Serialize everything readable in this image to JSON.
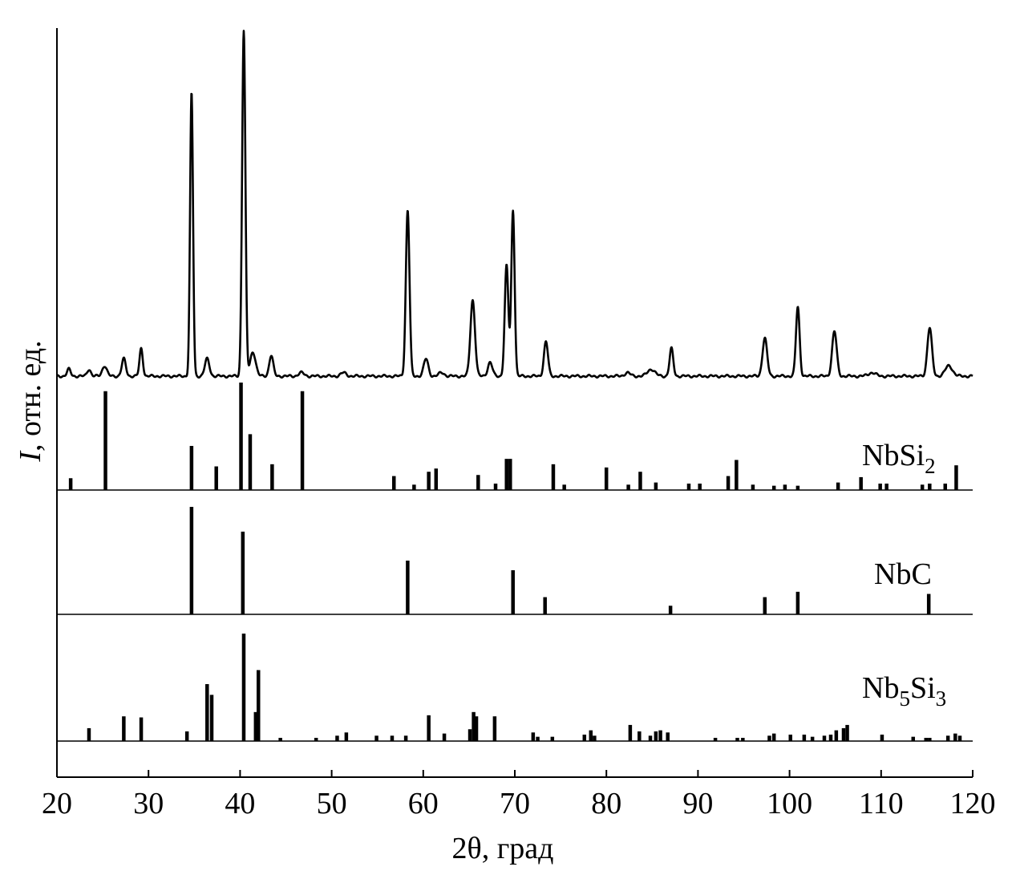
{
  "chart_data": {
    "type": "line",
    "xlabel": "2θ, град",
    "ylabel_italic": "I",
    "ylabel_rest": ", отн. ед.",
    "xlim": [
      20,
      120
    ],
    "xticks": [
      20,
      30,
      40,
      50,
      60,
      70,
      80,
      90,
      100,
      110,
      120
    ],
    "pattern": {
      "baseline": 0.03,
      "peaks": [
        [
          21.3,
          0.02,
          0.2
        ],
        [
          23.5,
          0.02,
          0.2
        ],
        [
          25.2,
          0.03,
          0.25
        ],
        [
          27.3,
          0.05,
          0.22
        ],
        [
          29.2,
          0.08,
          0.18
        ],
        [
          34.7,
          0.82,
          0.16
        ],
        [
          36.4,
          0.05,
          0.25
        ],
        [
          40.4,
          1.0,
          0.18
        ],
        [
          41.4,
          0.07,
          0.3
        ],
        [
          43.4,
          0.06,
          0.22
        ],
        [
          46.7,
          0.01,
          0.3
        ],
        [
          51.3,
          0.01,
          0.3
        ],
        [
          58.3,
          0.48,
          0.2
        ],
        [
          60.3,
          0.05,
          0.25
        ],
        [
          62.0,
          0.01,
          0.3
        ],
        [
          65.4,
          0.22,
          0.25
        ],
        [
          67.3,
          0.04,
          0.25
        ],
        [
          69.1,
          0.32,
          0.2
        ],
        [
          69.8,
          0.48,
          0.18
        ],
        [
          73.4,
          0.1,
          0.22
        ],
        [
          82.3,
          0.01,
          0.3
        ],
        [
          84.9,
          0.02,
          0.4
        ],
        [
          87.1,
          0.08,
          0.2
        ],
        [
          97.3,
          0.11,
          0.25
        ],
        [
          100.9,
          0.2,
          0.2
        ],
        [
          104.9,
          0.13,
          0.25
        ],
        [
          109.0,
          0.01,
          0.4
        ],
        [
          115.3,
          0.14,
          0.25
        ],
        [
          117.4,
          0.03,
          0.4
        ]
      ]
    },
    "reference_patterns": [
      {
        "name": "NbSi",
        "subscript": "2",
        "lines": [
          [
            21.5,
            0.11
          ],
          [
            25.3,
            0.92
          ],
          [
            34.7,
            0.41
          ],
          [
            37.4,
            0.22
          ],
          [
            40.1,
            1.0
          ],
          [
            41.1,
            0.52
          ],
          [
            43.5,
            0.24
          ],
          [
            46.8,
            0.92
          ],
          [
            56.8,
            0.13
          ],
          [
            59.0,
            0.05
          ],
          [
            60.6,
            0.17
          ],
          [
            61.4,
            0.2
          ],
          [
            66.0,
            0.14
          ],
          [
            67.9,
            0.06
          ],
          [
            69.1,
            0.29
          ],
          [
            69.5,
            0.29
          ],
          [
            74.2,
            0.24
          ],
          [
            75.4,
            0.05
          ],
          [
            80.0,
            0.21
          ],
          [
            82.4,
            0.05
          ],
          [
            83.7,
            0.17
          ],
          [
            85.4,
            0.07
          ],
          [
            89.0,
            0.06
          ],
          [
            90.2,
            0.06
          ],
          [
            93.3,
            0.13
          ],
          [
            94.2,
            0.28
          ],
          [
            96.0,
            0.05
          ],
          [
            98.3,
            0.04
          ],
          [
            99.5,
            0.05
          ],
          [
            100.9,
            0.04
          ],
          [
            105.3,
            0.07
          ],
          [
            107.8,
            0.12
          ],
          [
            109.9,
            0.06
          ],
          [
            110.6,
            0.06
          ],
          [
            114.5,
            0.05
          ],
          [
            115.3,
            0.06
          ],
          [
            117.0,
            0.06
          ],
          [
            118.2,
            0.23
          ]
        ]
      },
      {
        "name": "NbC",
        "subscript": "",
        "lines": [
          [
            34.7,
            1.0
          ],
          [
            40.3,
            0.77
          ],
          [
            58.3,
            0.5
          ],
          [
            69.8,
            0.41
          ],
          [
            73.3,
            0.16
          ],
          [
            87.0,
            0.08
          ],
          [
            97.3,
            0.16
          ],
          [
            100.9,
            0.21
          ],
          [
            115.2,
            0.19
          ]
        ]
      },
      {
        "name": "Nb",
        "subscript": "5",
        "name2": "Si",
        "subscript2": "3",
        "lines": [
          [
            23.5,
            0.12
          ],
          [
            27.3,
            0.23
          ],
          [
            29.2,
            0.22
          ],
          [
            34.2,
            0.09
          ],
          [
            36.4,
            0.53
          ],
          [
            36.9,
            0.43
          ],
          [
            40.4,
            1.0
          ],
          [
            41.7,
            0.27
          ],
          [
            42.0,
            0.66
          ],
          [
            44.4,
            0.03
          ],
          [
            48.3,
            0.03
          ],
          [
            50.6,
            0.05
          ],
          [
            51.6,
            0.08
          ],
          [
            54.9,
            0.05
          ],
          [
            56.6,
            0.05
          ],
          [
            58.1,
            0.05
          ],
          [
            60.6,
            0.24
          ],
          [
            62.3,
            0.07
          ],
          [
            65.1,
            0.11
          ],
          [
            65.5,
            0.27
          ],
          [
            65.8,
            0.23
          ],
          [
            67.8,
            0.23
          ],
          [
            72.0,
            0.08
          ],
          [
            72.5,
            0.04
          ],
          [
            74.1,
            0.04
          ],
          [
            77.6,
            0.06
          ],
          [
            78.3,
            0.1
          ],
          [
            78.7,
            0.05
          ],
          [
            82.6,
            0.15
          ],
          [
            83.6,
            0.09
          ],
          [
            84.8,
            0.05
          ],
          [
            85.4,
            0.09
          ],
          [
            85.9,
            0.1
          ],
          [
            86.7,
            0.08
          ],
          [
            91.9,
            0.03
          ],
          [
            94.3,
            0.03
          ],
          [
            94.9,
            0.03
          ],
          [
            97.8,
            0.05
          ],
          [
            98.3,
            0.07
          ],
          [
            100.1,
            0.06
          ],
          [
            101.6,
            0.06
          ],
          [
            102.5,
            0.04
          ],
          [
            103.8,
            0.05
          ],
          [
            104.5,
            0.06
          ],
          [
            105.1,
            0.1
          ],
          [
            105.9,
            0.12
          ],
          [
            106.3,
            0.15
          ],
          [
            110.1,
            0.06
          ],
          [
            113.5,
            0.04
          ],
          [
            114.9,
            0.03
          ],
          [
            115.3,
            0.03
          ],
          [
            117.3,
            0.05
          ],
          [
            118.1,
            0.07
          ],
          [
            118.6,
            0.05
          ]
        ]
      }
    ]
  }
}
